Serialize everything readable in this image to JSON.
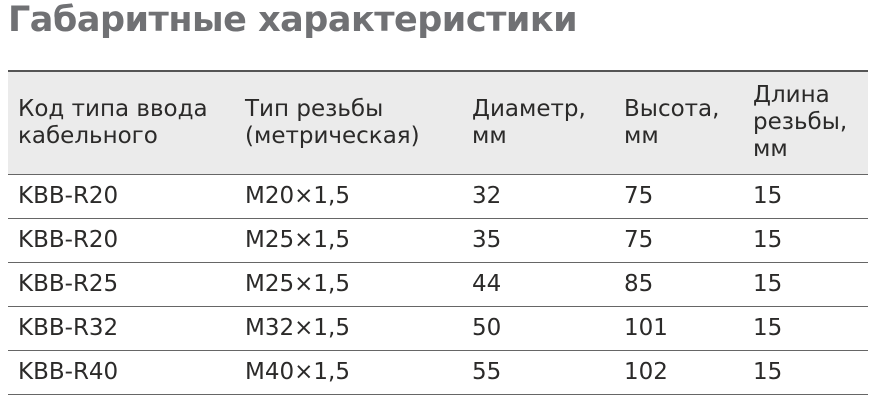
{
  "title": "Габаритные характеристики",
  "table": {
    "headers": [
      [
        "Код типа ввода",
        "кабельного"
      ],
      [
        "Тип резьбы",
        "(метрическая)"
      ],
      [
        "Диаметр,",
        "мм"
      ],
      [
        "Высота,",
        "мм"
      ],
      [
        "Длина",
        "резьбы,",
        "мм"
      ]
    ],
    "rows": [
      [
        "KBB-R20",
        "M20×1,5",
        32,
        75,
        15
      ],
      [
        "KBB-R20",
        "M25×1,5",
        35,
        75,
        15
      ],
      [
        "KBB-R25",
        "M25×1,5",
        44,
        85,
        15
      ],
      [
        "KBB-R32",
        "M32×1,5",
        50,
        101,
        15
      ],
      [
        "KBB-R40",
        "M40×1,5",
        55,
        102,
        15
      ]
    ]
  }
}
